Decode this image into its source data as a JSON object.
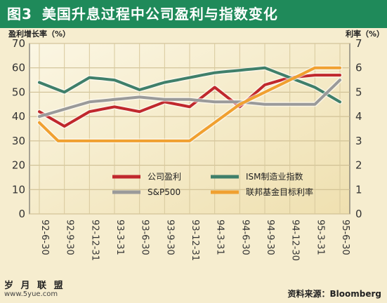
{
  "header": {
    "fig_label": "图3",
    "title": "美国升息过程中公司盈利与指数变化"
  },
  "footer": {
    "watermark": "岁 月 联 盟",
    "watermark_url": "www.5yue.com",
    "source_label": "资料来源：",
    "source_name": "Bloomberg"
  },
  "chart_data": {
    "type": "line",
    "y_left_label": "盈利增长率（%）",
    "y_right_label": "利率（%）",
    "y_left_ticks": [
      "70",
      "60",
      "50",
      "40",
      "30",
      "20",
      "10",
      "0"
    ],
    "y_right_ticks": [
      "7",
      "6",
      "5",
      "4",
      "3",
      "2",
      "1",
      "0"
    ],
    "ylim_left": [
      0,
      70
    ],
    "ylim_right": [
      0,
      7
    ],
    "categories": [
      "92-6-30",
      "92-9-30",
      "92-12-31",
      "93-3-31",
      "93-6-30",
      "93-9-30",
      "93-12-31",
      "94-3-31",
      "94-6-30",
      "94-9-30",
      "94-12-30",
      "95-3-31",
      "95-6-30"
    ],
    "x": [
      0,
      0.25,
      0.5,
      0.75,
      1,
      1.25,
      1.5,
      1.75,
      2,
      2.25,
      2.5,
      2.75,
      3,
      3.25,
      3.5,
      3.75,
      4,
      4.25,
      4.5,
      4.75,
      5,
      5.25,
      5.5,
      5.75,
      6,
      6.25,
      6.5,
      6.75,
      7,
      7.25,
      7.5,
      7.75,
      8,
      8.25,
      8.5,
      8.75,
      9,
      9.25,
      9.5,
      9.75,
      10,
      10.25,
      10.5,
      10.75,
      11,
      11.25,
      11.5,
      11.75,
      12
    ],
    "grid": true,
    "legend_position": "center",
    "series": [
      {
        "name": "公司盈利",
        "axis": "left",
        "color": "#c0282d",
        "values": [
          42,
          40.5,
          39,
          37.5,
          36,
          37.5,
          39,
          40.5,
          42,
          42.5,
          43,
          43.5,
          44,
          43.5,
          43,
          42.5,
          42,
          43,
          44,
          45,
          46,
          45.5,
          45,
          44.5,
          44,
          46,
          48,
          50,
          52,
          50,
          48,
          46,
          44,
          46.25,
          48.5,
          50.75,
          53,
          53.75,
          54.5,
          55.25,
          56,
          56.25,
          56.5,
          56.75,
          57,
          57,
          57,
          57,
          57
        ]
      },
      {
        "name": "ISM制造业指数",
        "axis": "left",
        "color": "#3f7f6a",
        "values": [
          54,
          53,
          52,
          51,
          50,
          51.5,
          53,
          54.5,
          56,
          55.75,
          55.5,
          55.25,
          55,
          54,
          53,
          52,
          51,
          51.75,
          52.5,
          53.25,
          54,
          54.5,
          55,
          55.5,
          56,
          56.5,
          57,
          57.5,
          58,
          58.25,
          58.5,
          58.75,
          59,
          59.25,
          59.5,
          59.75,
          60,
          59,
          58,
          57,
          56,
          55,
          54,
          53,
          52,
          50.5,
          49,
          47.5,
          46
        ]
      },
      {
        "name": "S&P500",
        "axis": "left",
        "color": "#9a9a9a",
        "values": [
          40,
          40.75,
          41.5,
          42.25,
          43,
          43.75,
          44.5,
          45.25,
          46,
          46.25,
          46.5,
          46.75,
          47,
          47.25,
          47.5,
          47.75,
          48,
          47.75,
          47.5,
          47.25,
          47,
          47,
          47,
          47,
          47,
          46.75,
          46.5,
          46.25,
          46,
          46,
          46,
          46,
          46,
          45.75,
          45.5,
          45.25,
          45,
          45,
          45,
          45,
          45,
          45,
          45,
          45,
          45,
          47.5,
          50,
          52.5,
          55
        ]
      },
      {
        "name": "联邦基金目标利率",
        "axis": "right",
        "color": "#f0a030",
        "values": [
          3.75,
          3.5,
          3.25,
          3.0,
          3.0,
          3.0,
          3.0,
          3.0,
          3.0,
          3.0,
          3.0,
          3.0,
          3.0,
          3.0,
          3.0,
          3.0,
          3.0,
          3.0,
          3.0,
          3.0,
          3.0,
          3.0,
          3.0,
          3.0,
          3.0,
          3.1875,
          3.375,
          3.5625,
          3.75,
          3.9375,
          4.125,
          4.3125,
          4.5,
          4.625,
          4.75,
          4.875,
          5.0,
          5.125,
          5.25,
          5.375,
          5.5,
          5.625,
          5.75,
          5.875,
          6.0,
          6.0,
          6.0,
          6.0,
          6.0
        ]
      }
    ]
  }
}
